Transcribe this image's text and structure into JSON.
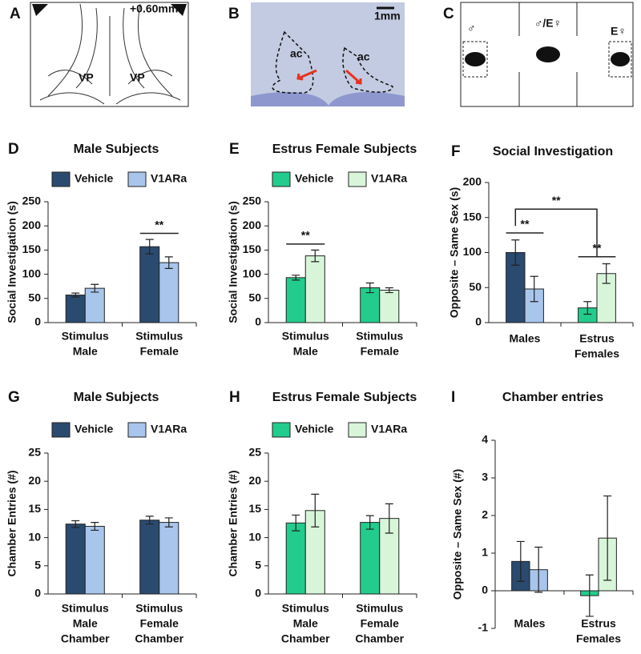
{
  "figure": {
    "A": {
      "panel": "A",
      "bregma": "+0.60mm",
      "regions": [
        "VP",
        "VP"
      ]
    },
    "B": {
      "panel": "B",
      "scale": "1mm",
      "regions": [
        "ac",
        "ac"
      ]
    },
    "C": {
      "panel": "C",
      "chambers": [
        "♂",
        "♂/E♀",
        "E♀"
      ]
    }
  },
  "chart_data": [
    {
      "type": "bar",
      "panel": "D",
      "title": "Male Subjects",
      "y_label": "Social Investigation (s)",
      "categories": [
        [
          "Stimulus",
          "Male"
        ],
        [
          "Stimulus",
          "Female"
        ]
      ],
      "series": [
        {
          "name": "Vehicle",
          "color": "#2b4a6f",
          "values": [
            57,
            157
          ],
          "errors": [
            4,
            15
          ]
        },
        {
          "name": "V1ARa",
          "color": "#a8c5ec",
          "values": [
            71,
            124
          ],
          "errors": [
            8,
            12
          ]
        }
      ],
      "ylim": [
        0,
        250
      ],
      "yticks": [
        0,
        50,
        100,
        150,
        200,
        250
      ],
      "legend": true,
      "annotations": [
        {
          "text": "**"
        }
      ]
    },
    {
      "type": "bar",
      "panel": "E",
      "title": "Estrus Female Subjects",
      "y_label": "Social Investigation (s)",
      "categories": [
        [
          "Stimulus",
          "Male"
        ],
        [
          "Stimulus",
          "Female"
        ]
      ],
      "series": [
        {
          "name": "Vehicle",
          "color": "#22cc8c",
          "values": [
            93,
            72
          ],
          "errors": [
            5,
            10
          ]
        },
        {
          "name": "V1ARa",
          "color": "#d8f5d9",
          "values": [
            138,
            67
          ],
          "errors": [
            12,
            5
          ]
        }
      ],
      "ylim": [
        0,
        250
      ],
      "yticks": [
        0,
        50,
        100,
        150,
        200,
        250
      ],
      "legend": true,
      "annotations": [
        {
          "text": "**"
        }
      ]
    },
    {
      "type": "bar",
      "panel": "F",
      "title": "Social Investigation",
      "y_label": "Opposite – Same Sex (s)",
      "categories": [
        [
          "Males"
        ],
        [
          "Estrus",
          "Females"
        ]
      ],
      "series": [
        {
          "colors": [
            "#2b4a6f",
            "#22cc8c"
          ],
          "values": [
            100,
            21
          ],
          "errors": [
            18,
            9
          ]
        },
        {
          "colors": [
            "#a8c5ec",
            "#d8f5d9"
          ],
          "values": [
            48,
            70
          ],
          "errors": [
            18,
            14
          ]
        }
      ],
      "ylim": [
        0,
        200
      ],
      "yticks": [
        0,
        50,
        100,
        150,
        200
      ],
      "legend": false,
      "annotations": [
        {
          "text": "**"
        },
        {
          "text": "**"
        },
        {
          "text": "**"
        }
      ]
    },
    {
      "type": "bar",
      "panel": "G",
      "title": "Male Subjects",
      "y_label": "Chamber Entries (#)",
      "categories": [
        [
          "Stimulus",
          "Male",
          "Chamber"
        ],
        [
          "Stimulus",
          "Female",
          "Chamber"
        ]
      ],
      "series": [
        {
          "name": "Vehicle",
          "color": "#2b4a6f",
          "values": [
            12.4,
            13.1
          ],
          "errors": [
            0.6,
            0.7
          ]
        },
        {
          "name": "V1ARa",
          "color": "#a8c5ec",
          "values": [
            12.0,
            12.7
          ],
          "errors": [
            0.7,
            0.8
          ]
        }
      ],
      "ylim": [
        0,
        25
      ],
      "yticks": [
        0,
        5,
        10,
        15,
        20,
        25
      ],
      "legend": true,
      "annotations": []
    },
    {
      "type": "bar",
      "panel": "H",
      "title": "Estrus Female Subjects",
      "y_label": "Chamber Entries (#)",
      "categories": [
        [
          "Stimulus",
          "Male",
          "Chamber"
        ],
        [
          "Stimulus",
          "Female",
          "Chamber"
        ]
      ],
      "series": [
        {
          "name": "Vehicle",
          "color": "#22cc8c",
          "values": [
            12.6,
            12.7
          ],
          "errors": [
            1.4,
            1.2
          ]
        },
        {
          "name": "V1ARa",
          "color": "#d8f5d9",
          "values": [
            14.8,
            13.4
          ],
          "errors": [
            2.9,
            2.6
          ]
        }
      ],
      "ylim": [
        0,
        25
      ],
      "yticks": [
        0,
        5,
        10,
        15,
        20,
        25
      ],
      "legend": true,
      "annotations": []
    },
    {
      "type": "bar",
      "panel": "I",
      "title": "Chamber entries",
      "y_label": "Opposite – Same Sex (#)",
      "categories": [
        [
          "Males"
        ],
        [
          "Estrus",
          "Females"
        ]
      ],
      "series": [
        {
          "colors": [
            "#2b4a6f",
            "#22cc8c"
          ],
          "values": [
            0.78,
            -0.13
          ],
          "errors": [
            0.53,
            0.55
          ]
        },
        {
          "colors": [
            "#a8c5ec",
            "#d8f5d9"
          ],
          "values": [
            0.56,
            1.4
          ],
          "errors": [
            0.6,
            1.12
          ]
        }
      ],
      "ylim": [
        -1,
        4
      ],
      "yticks": [
        -1,
        0,
        1,
        2,
        3,
        4
      ],
      "legend": false,
      "annotations": []
    }
  ]
}
